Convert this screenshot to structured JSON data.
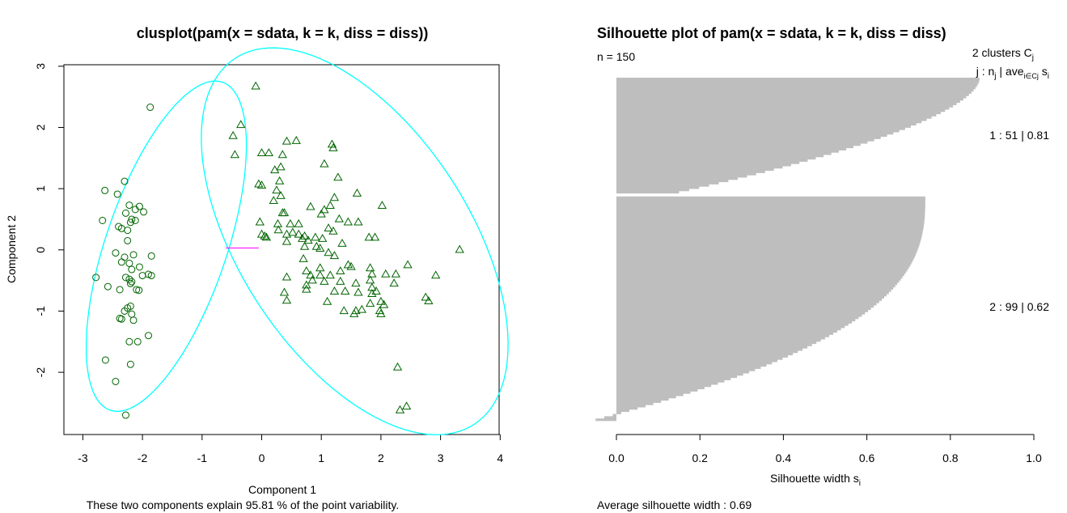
{
  "chart_data": [
    {
      "type": "scatter",
      "title": "clusplot(pam(x = sdata, k = k, diss = diss))",
      "xlabel": "Component 1",
      "ylabel": "Component 2",
      "subtitle": "These two components explain 95.81 % of the point variability.",
      "xlim": [
        -3.3,
        4.0
      ],
      "ylim": [
        -3.0,
        3.05
      ],
      "xticks": [
        "-3",
        "-2",
        "-1",
        "0",
        "1",
        "2",
        "3",
        "4"
      ],
      "yticks": [
        "-2",
        "-1",
        "0",
        "1",
        "2",
        "3"
      ],
      "colors": {
        "points": "#006400",
        "ellipse": "#00ffff",
        "connector": "#ff00ff"
      },
      "ellipses": [
        {
          "cluster": 1,
          "cx": -1.6,
          "cy": 0.06,
          "a": 2.84,
          "b": 1.01,
          "angle_deg": 70.5
        },
        {
          "cluster": 2,
          "cx": 1.56,
          "cy": 0.14,
          "a": 3.6,
          "b": 1.91,
          "angle_deg": -55.6
        }
      ],
      "connector": {
        "x": [
          -0.6,
          -0.05
        ],
        "y": [
          0.03,
          0.03
        ]
      },
      "series": [
        {
          "marker": "circle",
          "points": [
            [
              -1.87,
              2.33
            ],
            [
              -2.63,
              0.97
            ],
            [
              -2.42,
              0.91
            ],
            [
              -2.3,
              1.12
            ],
            [
              -2.05,
              0.71
            ],
            [
              -2.12,
              0.66
            ],
            [
              -1.98,
              0.62
            ],
            [
              -2.22,
              0.73
            ],
            [
              -2.67,
              0.48
            ],
            [
              -2.18,
              0.5
            ],
            [
              -2.28,
              0.6
            ],
            [
              -2.12,
              0.48
            ],
            [
              -2.4,
              0.38
            ],
            [
              -2.2,
              0.45
            ],
            [
              -2.35,
              0.35
            ],
            [
              -2.25,
              0.32
            ],
            [
              -2.25,
              0.15
            ],
            [
              -2.45,
              -0.05
            ],
            [
              -2.3,
              -0.12
            ],
            [
              -2.15,
              -0.08
            ],
            [
              -2.05,
              -0.28
            ],
            [
              -1.85,
              -0.1
            ],
            [
              -2.22,
              -0.22
            ],
            [
              -2.18,
              -0.32
            ],
            [
              -2.0,
              -0.42
            ],
            [
              -1.9,
              -0.4
            ],
            [
              -1.85,
              -0.42
            ],
            [
              -2.78,
              -0.45
            ],
            [
              -2.28,
              -0.45
            ],
            [
              -2.22,
              -0.48
            ],
            [
              -2.18,
              -0.52
            ],
            [
              -2.2,
              -0.55
            ],
            [
              -2.58,
              -0.6
            ],
            [
              -2.38,
              -0.65
            ],
            [
              -2.06,
              -0.66
            ],
            [
              -2.25,
              -0.95
            ],
            [
              -2.3,
              -1.0
            ],
            [
              -2.18,
              -1.05
            ],
            [
              -2.38,
              -1.12
            ],
            [
              -2.35,
              -1.13
            ],
            [
              -2.15,
              -1.15
            ],
            [
              -1.9,
              -1.4
            ],
            [
              -2.22,
              -1.5
            ],
            [
              -2.08,
              -1.5
            ],
            [
              -2.62,
              -1.8
            ],
            [
              -2.2,
              -1.87
            ],
            [
              -2.45,
              -2.15
            ],
            [
              -2.28,
              -2.7
            ],
            [
              -2.2,
              -0.92
            ],
            [
              -2.1,
              -0.65
            ],
            [
              -2.35,
              -0.2
            ]
          ]
        },
        {
          "marker": "triangle",
          "points": [
            [
              -0.1,
              2.67
            ],
            [
              -0.35,
              2.04
            ],
            [
              -0.48,
              1.86
            ],
            [
              -0.45,
              1.55
            ],
            [
              0.0,
              1.58
            ],
            [
              0.12,
              1.58
            ],
            [
              0.42,
              1.77
            ],
            [
              0.58,
              1.78
            ],
            [
              0.35,
              1.55
            ],
            [
              1.18,
              1.72
            ],
            [
              1.2,
              1.66
            ],
            [
              0.22,
              1.3
            ],
            [
              0.32,
              1.35
            ],
            [
              1.05,
              1.4
            ],
            [
              0.3,
              1.12
            ],
            [
              1.28,
              1.18
            ],
            [
              -0.05,
              1.07
            ],
            [
              0.0,
              1.05
            ],
            [
              0.25,
              0.97
            ],
            [
              0.32,
              0.88
            ],
            [
              0.35,
              0.6
            ],
            [
              0.2,
              0.8
            ],
            [
              1.6,
              0.92
            ],
            [
              2.02,
              0.72
            ],
            [
              1.22,
              0.85
            ],
            [
              1.15,
              0.72
            ],
            [
              0.82,
              0.7
            ],
            [
              1.05,
              0.65
            ],
            [
              1.0,
              0.58
            ],
            [
              1.3,
              0.5
            ],
            [
              1.45,
              0.45
            ],
            [
              1.62,
              0.45
            ],
            [
              0.27,
              0.42
            ],
            [
              0.48,
              0.42
            ],
            [
              0.62,
              0.42
            ],
            [
              1.12,
              0.35
            ],
            [
              1.2,
              0.3
            ],
            [
              -0.03,
              0.45
            ],
            [
              0.0,
              0.25
            ],
            [
              0.08,
              0.2
            ],
            [
              0.28,
              0.32
            ],
            [
              0.42,
              0.25
            ],
            [
              0.52,
              0.28
            ],
            [
              0.62,
              0.25
            ],
            [
              0.72,
              0.22
            ],
            [
              0.78,
              0.15
            ],
            [
              0.9,
              0.2
            ],
            [
              1.02,
              0.18
            ],
            [
              1.8,
              0.2
            ],
            [
              1.9,
              0.2
            ],
            [
              0.05,
              0.22
            ],
            [
              0.42,
              0.13
            ],
            [
              0.68,
              0.18
            ],
            [
              1.35,
              0.1
            ],
            [
              0.72,
              0.05
            ],
            [
              0.92,
              0.05
            ],
            [
              0.98,
              0.02
            ],
            [
              1.12,
              -0.05
            ],
            [
              1.22,
              -0.1
            ],
            [
              0.7,
              -0.15
            ],
            [
              0.98,
              -0.3
            ],
            [
              1.45,
              -0.25
            ],
            [
              1.5,
              -0.28
            ],
            [
              1.32,
              -0.35
            ],
            [
              2.45,
              -0.25
            ],
            [
              1.82,
              -0.3
            ],
            [
              1.85,
              -0.4
            ],
            [
              2.08,
              -0.4
            ],
            [
              2.25,
              -0.4
            ],
            [
              0.75,
              -0.35
            ],
            [
              0.82,
              -0.42
            ],
            [
              0.98,
              -0.42
            ],
            [
              1.15,
              -0.42
            ],
            [
              2.92,
              -0.42
            ],
            [
              0.42,
              -0.45
            ],
            [
              0.85,
              -0.5
            ],
            [
              1.05,
              -0.52
            ],
            [
              1.82,
              -0.5
            ],
            [
              2.22,
              -0.55
            ],
            [
              0.75,
              -0.58
            ],
            [
              1.32,
              -0.52
            ],
            [
              1.85,
              -0.62
            ],
            [
              1.92,
              -0.68
            ],
            [
              1.4,
              -0.68
            ],
            [
              1.62,
              -0.7
            ],
            [
              1.85,
              -0.72
            ],
            [
              1.58,
              -0.55
            ],
            [
              0.38,
              -0.7
            ],
            [
              0.75,
              -0.65
            ],
            [
              1.22,
              -0.68
            ],
            [
              2.75,
              -0.78
            ],
            [
              2.8,
              -0.84
            ],
            [
              0.42,
              -0.83
            ],
            [
              1.1,
              -0.85
            ],
            [
              1.82,
              -0.88
            ],
            [
              2.0,
              -0.85
            ],
            [
              2.05,
              -0.9
            ],
            [
              1.38,
              -1.0
            ],
            [
              1.55,
              -1.05
            ],
            [
              1.58,
              -1.0
            ],
            [
              1.68,
              -0.98
            ],
            [
              1.98,
              -1.0
            ],
            [
              2.0,
              -1.05
            ],
            [
              2.28,
              -1.92
            ],
            [
              2.32,
              -2.62
            ],
            [
              2.43,
              -2.56
            ],
            [
              3.32,
              -0.0
            ],
            [
              0.38,
              0.6
            ]
          ]
        }
      ]
    },
    {
      "type": "bar",
      "title": "Silhouette plot of pam(x = sdata, k = k, diss = diss)",
      "n_label": "n = 150",
      "legend_head": "2  clusters  C",
      "legend_head_sub": "j",
      "legend_sub_prefix": "j :  n",
      "legend_sub_j": "j",
      "legend_sub_mid": " | ave",
      "legend_sub_iec": "i∈Cj",
      "legend_sub_s": "  s",
      "legend_sub_i": "i",
      "clusters": [
        {
          "label": "1 :   51  |  0.81",
          "n": 51,
          "avg": 0.81
        },
        {
          "label": "2 :   99  |  0.62",
          "n": 99,
          "avg": 0.62
        }
      ],
      "xlabel": "Silhouette width s",
      "xlabel_sub": "i",
      "xlim": [
        0,
        1
      ],
      "xticks": [
        "0.0",
        "0.2",
        "0.4",
        "0.6",
        "0.8",
        "1.0"
      ],
      "summary": "Average silhouette width :  0.69",
      "bar_color": "#bebebe",
      "cluster_profiles": [
        {
          "cluster": 1,
          "n": 51,
          "max": 0.87,
          "min": 0.15,
          "shape": 1.7
        },
        {
          "cluster": 2,
          "n": 99,
          "max": 0.74,
          "min": -0.05,
          "shape": 2.6
        }
      ]
    }
  ]
}
